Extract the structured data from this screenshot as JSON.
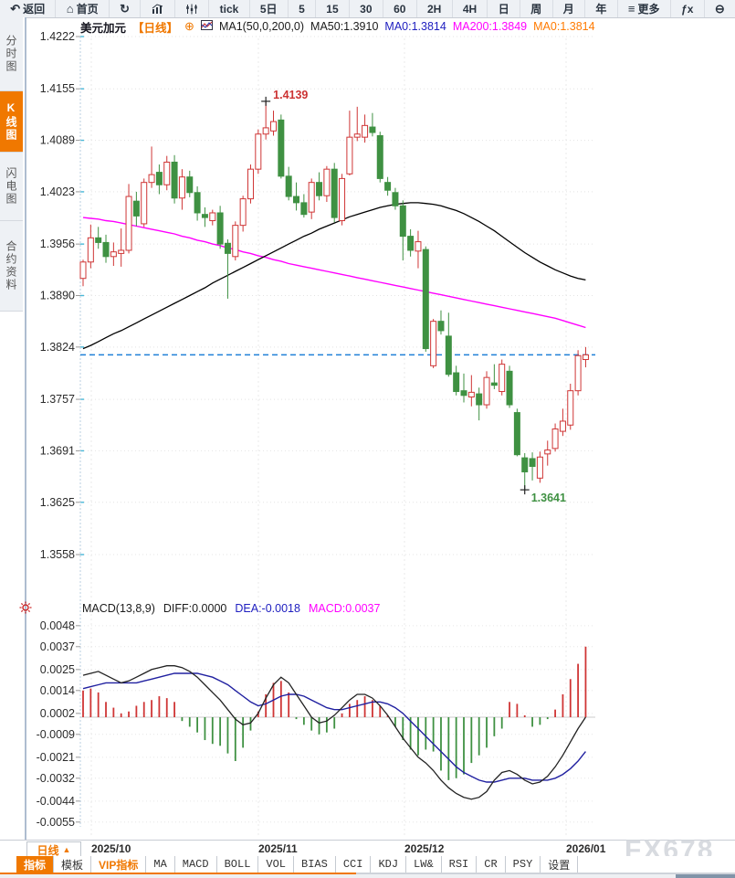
{
  "toolbar": {
    "items": [
      {
        "name": "back",
        "icon": "↶",
        "label": "返回"
      },
      {
        "name": "home",
        "icon": "⌂",
        "label": "首页"
      },
      {
        "name": "refresh",
        "icon": "↻"
      },
      {
        "name": "bar-chart",
        "icon": "bars"
      },
      {
        "name": "candle-sliders",
        "icon": "sliders"
      },
      {
        "name": "tick",
        "label": "tick"
      },
      {
        "name": "period-5d",
        "label": "5日"
      },
      {
        "name": "period-5",
        "label": "5"
      },
      {
        "name": "period-15",
        "label": "15"
      },
      {
        "name": "period-30",
        "label": "30"
      },
      {
        "name": "period-60",
        "label": "60"
      },
      {
        "name": "period-2h",
        "label": "2H"
      },
      {
        "name": "period-4h",
        "label": "4H"
      },
      {
        "name": "period-day",
        "label": "日"
      },
      {
        "name": "period-week",
        "label": "周"
      },
      {
        "name": "period-month",
        "label": "月"
      },
      {
        "name": "period-year",
        "label": "年"
      },
      {
        "name": "more",
        "icon": "≡",
        "label": "更多"
      },
      {
        "name": "fx",
        "label": "ƒx"
      },
      {
        "name": "zoom-out",
        "icon": "⊖"
      }
    ]
  },
  "sidebar": {
    "items": [
      {
        "name": "time-share-chart",
        "label": "分时图",
        "active": false
      },
      {
        "name": "kline-chart",
        "label": "K线图",
        "active": true
      },
      {
        "name": "lightning-chart",
        "label": "闪电图",
        "active": false
      },
      {
        "name": "contract-info",
        "label": "合约资料",
        "active": false
      }
    ]
  },
  "chart_header": {
    "instrument": "美元加元",
    "period_tag": "【日线】",
    "plus_icon": "⊕",
    "ma_settings": "MA1(50,0,200,0)",
    "ma50": "MA50:1.3910",
    "ma0_blue": "MA0:1.3814",
    "ma200": "MA200:1.3849",
    "ma0_orange": "MA0:1.3814"
  },
  "macd_header": {
    "formula": "MACD(13,8,9)",
    "diff": "DIFF:0.0000",
    "dea": "DEA:-0.0018",
    "macd": "MACD:0.0037"
  },
  "bottom": {
    "period_button": "日线",
    "up_triangle": "▲",
    "watermark": "FX678",
    "tabs": [
      {
        "name": "indicators",
        "label": "指标",
        "active": true
      },
      {
        "name": "templates",
        "label": "模板",
        "active": false
      },
      {
        "name": "vip-indicators",
        "label": "VIP指标",
        "vip": true
      },
      {
        "name": "ma",
        "label": "MA"
      },
      {
        "name": "macd",
        "label": "MACD"
      },
      {
        "name": "boll",
        "label": "BOLL"
      },
      {
        "name": "vol",
        "label": "VOL"
      },
      {
        "name": "bias",
        "label": "BIAS"
      },
      {
        "name": "cci",
        "label": "CCI"
      },
      {
        "name": "kdj",
        "label": "KDJ"
      },
      {
        "name": "lw",
        "label": "LW&"
      },
      {
        "name": "rsi",
        "label": "RSI"
      },
      {
        "name": "cr",
        "label": "CR"
      },
      {
        "name": "psy",
        "label": "PSY"
      },
      {
        "name": "settings",
        "label": "设置"
      }
    ]
  },
  "chart_data": {
    "type": "candlestick",
    "symbol": "美元加元",
    "period": "日线",
    "x_labels": [
      "2025/10",
      "2025/11",
      "2025/12",
      "2026/01"
    ],
    "price_axis_ticks": [
      "1.4222",
      "1.4155",
      "1.4089",
      "1.4023",
      "1.3956",
      "1.3890",
      "1.3824",
      "1.3757",
      "1.3691",
      "1.3625",
      "1.3558"
    ],
    "current_price": 1.3814,
    "annotations": {
      "high": {
        "index": 24,
        "label": "1.4139",
        "value": 1.4139
      },
      "low": {
        "index": 58,
        "label": "1.3641",
        "value": 1.3641
      }
    },
    "candles": [
      [
        1.3912,
        1.3936,
        1.3902,
        1.3933
      ],
      [
        1.3933,
        1.3981,
        1.3925,
        1.3964
      ],
      [
        1.3964,
        1.3978,
        1.395,
        1.3958
      ],
      [
        1.3958,
        1.3968,
        1.3932,
        1.394
      ],
      [
        1.394,
        1.3958,
        1.3928,
        1.3946
      ],
      [
        1.3944,
        1.3976,
        1.3927,
        1.3948
      ],
      [
        1.3948,
        1.4033,
        1.3944,
        1.4017
      ],
      [
        1.4011,
        1.4023,
        1.3979,
        1.3992
      ],
      [
        1.3982,
        1.404,
        1.3978,
        1.4035
      ],
      [
        1.4035,
        1.4081,
        1.4028,
        1.4045
      ],
      [
        1.4048,
        1.4058,
        1.402,
        1.4032
      ],
      [
        1.4032,
        1.4069,
        1.4025,
        1.4061
      ],
      [
        1.4061,
        1.407,
        1.4008,
        1.4015
      ],
      [
        1.4015,
        1.4052,
        1.4,
        1.4042
      ],
      [
        1.4042,
        1.405,
        1.4016,
        1.4022
      ],
      [
        1.4022,
        1.403,
        1.3986,
        1.3996
      ],
      [
        1.3994,
        1.4003,
        1.3978,
        1.399
      ],
      [
        1.3986,
        1.4,
        1.398,
        1.3996
      ],
      [
        1.3996,
        1.4005,
        1.395,
        1.3956
      ],
      [
        1.3957,
        1.3962,
        1.3886,
        1.3944
      ],
      [
        1.394,
        1.3985,
        1.3935,
        1.398
      ],
      [
        1.398,
        1.4018,
        1.3972,
        1.4014
      ],
      [
        1.4014,
        1.4058,
        1.4008,
        1.4052
      ],
      [
        1.4052,
        1.4103,
        1.4046,
        1.4097
      ],
      [
        1.4097,
        1.4139,
        1.409,
        1.4105
      ],
      [
        1.4101,
        1.4127,
        1.4095,
        1.4113
      ],
      [
        1.4115,
        1.4122,
        1.404,
        1.4043
      ],
      [
        1.4043,
        1.4055,
        1.4012,
        1.4017
      ],
      [
        1.4017,
        1.4035,
        1.3999,
        1.4009
      ],
      [
        1.4009,
        1.402,
        1.399,
        1.3994
      ],
      [
        1.3997,
        1.404,
        1.3988,
        1.4035
      ],
      [
        1.4035,
        1.4048,
        1.4012,
        1.4018
      ],
      [
        1.4018,
        1.4056,
        1.401,
        1.4052
      ],
      [
        1.4052,
        1.406,
        1.3984,
        1.399
      ],
      [
        1.3986,
        1.4046,
        1.398,
        1.404
      ],
      [
        1.4046,
        1.4127,
        1.4044,
        1.4093
      ],
      [
        1.4093,
        1.4132,
        1.4088,
        1.4097
      ],
      [
        1.4093,
        1.4122,
        1.4086,
        1.4108
      ],
      [
        1.4106,
        1.4124,
        1.4094,
        1.4099
      ],
      [
        1.4095,
        1.41,
        1.4035,
        1.404
      ],
      [
        1.4035,
        1.4042,
        1.4018,
        1.4025
      ],
      [
        1.4022,
        1.4028,
        1.4,
        1.4005
      ],
      [
        1.4005,
        1.4012,
        1.3935,
        1.3966
      ],
      [
        1.3966,
        1.3975,
        1.394,
        1.3948
      ],
      [
        1.3947,
        1.3973,
        1.3925,
        1.3959
      ],
      [
        1.3949,
        1.3953,
        1.3818,
        1.3822
      ],
      [
        1.38,
        1.386,
        1.3797,
        1.3857
      ],
      [
        1.3857,
        1.3871,
        1.384,
        1.3845
      ],
      [
        1.3838,
        1.3868,
        1.3786,
        1.3789
      ],
      [
        1.3791,
        1.38,
        1.3762,
        1.3767
      ],
      [
        1.3768,
        1.379,
        1.3753,
        1.3762
      ],
      [
        1.376,
        1.3788,
        1.3748,
        1.3766
      ],
      [
        1.3764,
        1.3772,
        1.373,
        1.375
      ],
      [
        1.375,
        1.3793,
        1.3745,
        1.3785
      ],
      [
        1.3778,
        1.3802,
        1.377,
        1.3775
      ],
      [
        1.3767,
        1.3808,
        1.3762,
        1.3802
      ],
      [
        1.3793,
        1.38,
        1.3746,
        1.375
      ],
      [
        1.374,
        1.3745,
        1.3684,
        1.3686
      ],
      [
        1.3682,
        1.3688,
        1.3641,
        1.3664
      ],
      [
        1.3681,
        1.3689,
        1.3653,
        1.3671
      ],
      [
        1.3656,
        1.369,
        1.365,
        1.3683
      ],
      [
        1.3687,
        1.3704,
        1.3672,
        1.3692
      ],
      [
        1.3694,
        1.3726,
        1.369,
        1.3719
      ],
      [
        1.3716,
        1.3745,
        1.371,
        1.3729
      ],
      [
        1.3724,
        1.3777,
        1.3718,
        1.3768
      ],
      [
        1.3768,
        1.382,
        1.3762,
        1.3813
      ],
      [
        1.3808,
        1.3824,
        1.3798,
        1.3814
      ]
    ],
    "ma50": [
      1.3822,
      1.3826,
      1.3831,
      1.3836,
      1.3841,
      1.3845,
      1.385,
      1.3855,
      1.386,
      1.3865,
      1.387,
      1.3875,
      1.388,
      1.3885,
      1.389,
      1.3895,
      1.39,
      1.3906,
      1.3911,
      1.3916,
      1.3921,
      1.3926,
      1.3931,
      1.3936,
      1.3941,
      1.3946,
      1.3951,
      1.3956,
      1.3961,
      1.3966,
      1.397,
      1.3975,
      1.3979,
      1.3983,
      1.3987,
      1.3991,
      1.3994,
      1.3997,
      1.4,
      1.4003,
      1.4005,
      1.4007,
      1.4008,
      1.4009,
      1.4009,
      1.4008,
      1.4007,
      1.4005,
      1.4002,
      1.3999,
      1.3995,
      1.399,
      1.3985,
      1.3979,
      1.3973,
      1.3966,
      1.3959,
      1.3952,
      1.3945,
      1.3939,
      1.3933,
      1.3928,
      1.3923,
      1.3919,
      1.3915,
      1.3912,
      1.391
    ],
    "ma200": [
      1.399,
      1.3989,
      1.3988,
      1.3986,
      1.3985,
      1.3983,
      1.3981,
      1.3979,
      1.3977,
      1.3975,
      1.3973,
      1.3971,
      1.3969,
      1.3966,
      1.3964,
      1.3961,
      1.3959,
      1.3956,
      1.3954,
      1.3951,
      1.3949,
      1.3946,
      1.3944,
      1.3941,
      1.3939,
      1.3936,
      1.3934,
      1.3931,
      1.3929,
      1.3927,
      1.3925,
      1.3923,
      1.3921,
      1.3919,
      1.3917,
      1.3915,
      1.3913,
      1.3911,
      1.3909,
      1.3907,
      1.3905,
      1.3903,
      1.3901,
      1.3899,
      1.3897,
      1.3895,
      1.3893,
      1.3891,
      1.3889,
      1.3887,
      1.3885,
      1.3883,
      1.3881,
      1.3879,
      1.3877,
      1.3875,
      1.3873,
      1.3871,
      1.3869,
      1.3867,
      1.3865,
      1.3863,
      1.3861,
      1.3858,
      1.3855,
      1.3852,
      1.3849
    ],
    "macd": {
      "params": "13,8,9",
      "axis_ticks": [
        "0.0048",
        "0.0037",
        "0.0025",
        "0.0014",
        "0.0002",
        "-0.0009",
        "-0.0021",
        "-0.0032",
        "-0.0044",
        "-0.0055"
      ],
      "hist": [
        0.0014,
        0.0015,
        0.0013,
        0.0008,
        0.0005,
        0.0002,
        0.0003,
        0.0006,
        0.0008,
        0.0009,
        0.0011,
        0.001,
        0.0008,
        -0.0002,
        -0.0005,
        -0.0008,
        -0.0012,
        -0.0014,
        -0.0015,
        -0.0019,
        -0.0023,
        -0.0016,
        -0.0007,
        0.0003,
        0.0012,
        0.0018,
        0.0019,
        0.0013,
        -0.0001,
        -0.0004,
        -0.0007,
        -0.0009,
        -0.0008,
        -0.0006,
        0.0002,
        0.0007,
        0.0009,
        0.0011,
        0.0009,
        0.0006,
        0.0001,
        -0.0005,
        -0.0012,
        -0.0017,
        -0.002,
        -0.0017,
        -0.0018,
        -0.0028,
        -0.0033,
        -0.0032,
        -0.003,
        -0.0024,
        -0.002,
        -0.0016,
        -0.001,
        -0.0006,
        0.0008,
        0.0007,
        0.0001,
        -0.0005,
        -0.0004,
        -0.0001,
        0.0004,
        0.0012,
        0.002,
        0.0028,
        0.0037
      ],
      "diff": [
        0.0022,
        0.0023,
        0.0024,
        0.0022,
        0.002,
        0.0018,
        0.0019,
        0.0021,
        0.0023,
        0.0025,
        0.0026,
        0.0027,
        0.0027,
        0.0026,
        0.0024,
        0.0021,
        0.0017,
        0.0013,
        0.0009,
        0.0004,
        -0.0001,
        -0.0004,
        -0.0003,
        0.0002,
        0.001,
        0.0017,
        0.0021,
        0.0018,
        0.0012,
        0.0006,
        0.0,
        -0.0003,
        -0.0002,
        0.0001,
        0.0005,
        0.0009,
        0.0012,
        0.0012,
        0.001,
        0.0006,
        0.0001,
        -0.0005,
        -0.0011,
        -0.0016,
        -0.0021,
        -0.0024,
        -0.0028,
        -0.0033,
        -0.0037,
        -0.004,
        -0.0042,
        -0.0043,
        -0.0042,
        -0.0039,
        -0.0033,
        -0.0029,
        -0.0028,
        -0.003,
        -0.0033,
        -0.0035,
        -0.0034,
        -0.0031,
        -0.0026,
        -0.002,
        -0.0013,
        -0.0006,
        0.0
      ],
      "dea": [
        0.0015,
        0.0016,
        0.0017,
        0.0018,
        0.0018,
        0.0018,
        0.0018,
        0.0018,
        0.0019,
        0.002,
        0.0021,
        0.0022,
        0.0023,
        0.0023,
        0.0023,
        0.0023,
        0.0022,
        0.0021,
        0.0019,
        0.0017,
        0.0014,
        0.0011,
        0.0008,
        0.0006,
        0.0007,
        0.0009,
        0.0011,
        0.0012,
        0.0012,
        0.0011,
        0.0009,
        0.0007,
        0.0005,
        0.0004,
        0.0004,
        0.0005,
        0.0006,
        0.0007,
        0.0008,
        0.0008,
        0.0007,
        0.0005,
        0.0002,
        -0.0002,
        -0.0006,
        -0.001,
        -0.0014,
        -0.0018,
        -0.0022,
        -0.0026,
        -0.0029,
        -0.0031,
        -0.0033,
        -0.0034,
        -0.0034,
        -0.0033,
        -0.0032,
        -0.0032,
        -0.0032,
        -0.0033,
        -0.0033,
        -0.0033,
        -0.0032,
        -0.003,
        -0.0027,
        -0.0023,
        -0.0018
      ]
    },
    "colors": {
      "up": "#cf3535",
      "down": "#3f9142",
      "ma50": "#000000",
      "ma200": "#ff00ff",
      "diff": "#222222",
      "dea": "#2020a0",
      "hist_pos": "#cf3535",
      "hist_neg": "#3f9142",
      "current_price_line": "#1f80d8",
      "high_label": "#cc3333",
      "low_label": "#3f9142"
    }
  }
}
